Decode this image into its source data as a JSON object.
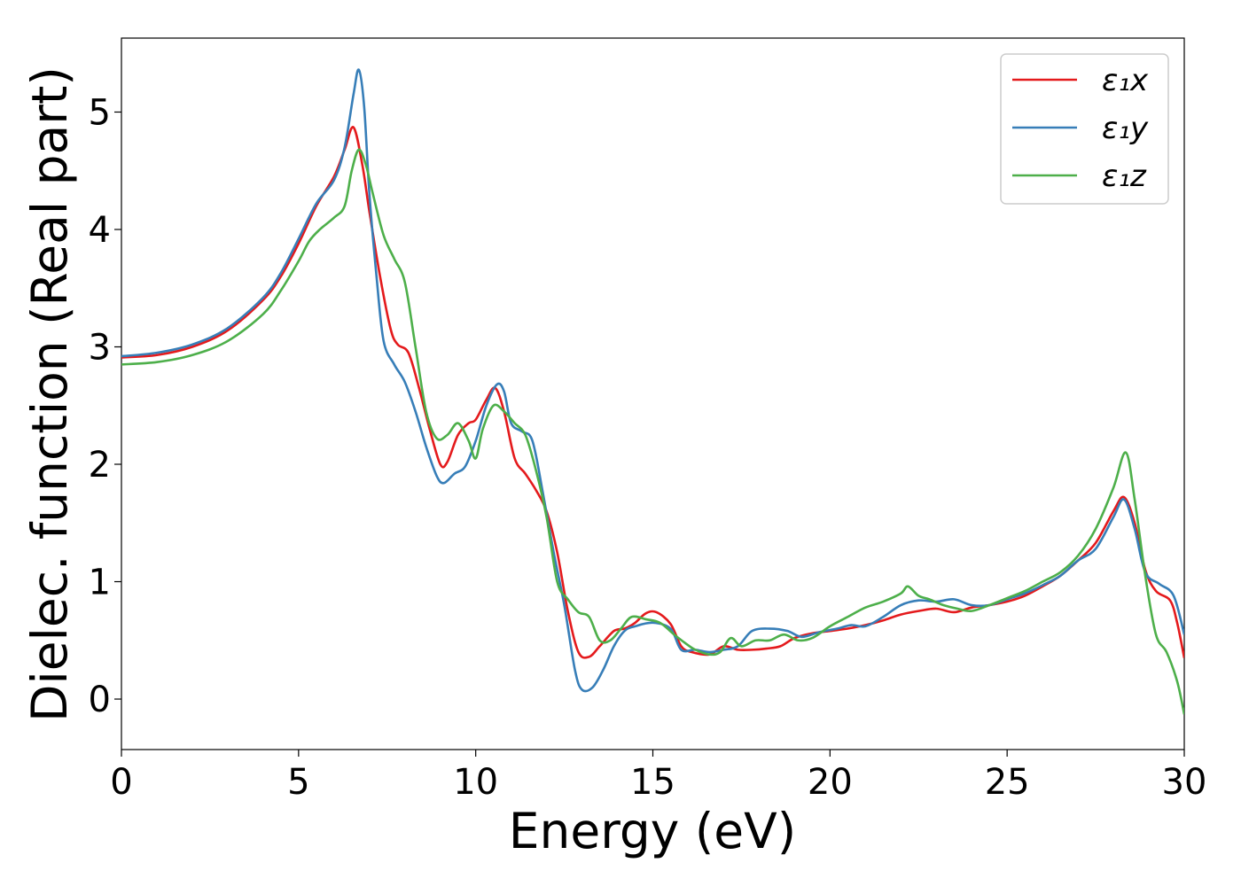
{
  "chart_data": {
    "type": "line",
    "xlabel": "Energy (eV)",
    "ylabel": "Dielec. function (Real part)",
    "xlim": [
      0,
      30
    ],
    "ylim": [
      -0.43,
      5.63
    ],
    "xticks": [
      0,
      5,
      10,
      15,
      20,
      25,
      30
    ],
    "yticks": [
      0,
      1,
      2,
      3,
      4,
      5
    ],
    "grid": false,
    "legend_position": "top-right",
    "series": [
      {
        "name": "ε₁x",
        "color": "#e41a1c",
        "points": [
          [
            0,
            2.91
          ],
          [
            1,
            2.93
          ],
          [
            2,
            3.0
          ],
          [
            3,
            3.14
          ],
          [
            4,
            3.4
          ],
          [
            4.5,
            3.6
          ],
          [
            5,
            3.88
          ],
          [
            5.5,
            4.2
          ],
          [
            6,
            4.45
          ],
          [
            6.3,
            4.68
          ],
          [
            6.55,
            4.87
          ],
          [
            6.8,
            4.55
          ],
          [
            7,
            4.15
          ],
          [
            7.3,
            3.6
          ],
          [
            7.6,
            3.15
          ],
          [
            7.8,
            3.02
          ],
          [
            8.1,
            2.95
          ],
          [
            8.4,
            2.65
          ],
          [
            8.7,
            2.3
          ],
          [
            9.0,
            2.0
          ],
          [
            9.2,
            2.02
          ],
          [
            9.5,
            2.25
          ],
          [
            9.8,
            2.35
          ],
          [
            10.0,
            2.38
          ],
          [
            10.3,
            2.55
          ],
          [
            10.55,
            2.65
          ],
          [
            10.8,
            2.45
          ],
          [
            11.1,
            2.05
          ],
          [
            11.4,
            1.92
          ],
          [
            11.7,
            1.78
          ],
          [
            12.0,
            1.6
          ],
          [
            12.3,
            1.25
          ],
          [
            12.6,
            0.75
          ],
          [
            12.9,
            0.4
          ],
          [
            13.2,
            0.36
          ],
          [
            13.5,
            0.45
          ],
          [
            13.9,
            0.58
          ],
          [
            14.2,
            0.6
          ],
          [
            14.5,
            0.65
          ],
          [
            14.8,
            0.73
          ],
          [
            15.1,
            0.74
          ],
          [
            15.5,
            0.64
          ],
          [
            15.8,
            0.45
          ],
          [
            16.1,
            0.4
          ],
          [
            16.6,
            0.38
          ],
          [
            17.0,
            0.45
          ],
          [
            17.4,
            0.42
          ],
          [
            17.8,
            0.42
          ],
          [
            18.2,
            0.43
          ],
          [
            18.6,
            0.45
          ],
          [
            19.0,
            0.52
          ],
          [
            19.5,
            0.56
          ],
          [
            20.0,
            0.58
          ],
          [
            20.5,
            0.6
          ],
          [
            21.0,
            0.63
          ],
          [
            21.5,
            0.67
          ],
          [
            22.0,
            0.72
          ],
          [
            22.5,
            0.75
          ],
          [
            23.0,
            0.77
          ],
          [
            23.5,
            0.74
          ],
          [
            24.0,
            0.78
          ],
          [
            24.5,
            0.8
          ],
          [
            25.0,
            0.83
          ],
          [
            25.5,
            0.88
          ],
          [
            26.0,
            0.96
          ],
          [
            26.5,
            1.05
          ],
          [
            27.0,
            1.18
          ],
          [
            27.5,
            1.33
          ],
          [
            28.0,
            1.6
          ],
          [
            28.3,
            1.72
          ],
          [
            28.6,
            1.5
          ],
          [
            28.9,
            1.1
          ],
          [
            29.2,
            0.92
          ],
          [
            29.6,
            0.84
          ],
          [
            29.8,
            0.65
          ],
          [
            30.0,
            0.35
          ]
        ]
      },
      {
        "name": "ε₁y",
        "color": "#377eb8",
        "points": [
          [
            0,
            2.92
          ],
          [
            1,
            2.95
          ],
          [
            2,
            3.02
          ],
          [
            3,
            3.16
          ],
          [
            4,
            3.42
          ],
          [
            4.5,
            3.63
          ],
          [
            5,
            3.92
          ],
          [
            5.5,
            4.22
          ],
          [
            6,
            4.42
          ],
          [
            6.3,
            4.7
          ],
          [
            6.55,
            5.15
          ],
          [
            6.7,
            5.36
          ],
          [
            6.85,
            5.05
          ],
          [
            7.0,
            4.3
          ],
          [
            7.2,
            3.6
          ],
          [
            7.4,
            3.05
          ],
          [
            7.7,
            2.85
          ],
          [
            8.0,
            2.7
          ],
          [
            8.3,
            2.45
          ],
          [
            8.6,
            2.15
          ],
          [
            8.9,
            1.9
          ],
          [
            9.1,
            1.84
          ],
          [
            9.4,
            1.92
          ],
          [
            9.7,
            1.98
          ],
          [
            10.0,
            2.2
          ],
          [
            10.3,
            2.5
          ],
          [
            10.6,
            2.68
          ],
          [
            10.8,
            2.62
          ],
          [
            11.0,
            2.35
          ],
          [
            11.3,
            2.28
          ],
          [
            11.6,
            2.2
          ],
          [
            11.9,
            1.75
          ],
          [
            12.2,
            1.25
          ],
          [
            12.5,
            0.8
          ],
          [
            12.8,
            0.25
          ],
          [
            13.0,
            0.08
          ],
          [
            13.3,
            0.1
          ],
          [
            13.6,
            0.25
          ],
          [
            13.9,
            0.45
          ],
          [
            14.2,
            0.58
          ],
          [
            14.5,
            0.62
          ],
          [
            15.0,
            0.65
          ],
          [
            15.5,
            0.6
          ],
          [
            15.8,
            0.42
          ],
          [
            16.2,
            0.42
          ],
          [
            16.6,
            0.4
          ],
          [
            17.0,
            0.42
          ],
          [
            17.4,
            0.45
          ],
          [
            17.8,
            0.58
          ],
          [
            18.3,
            0.6
          ],
          [
            18.8,
            0.58
          ],
          [
            19.2,
            0.53
          ],
          [
            19.7,
            0.57
          ],
          [
            20.2,
            0.6
          ],
          [
            20.6,
            0.63
          ],
          [
            21.0,
            0.62
          ],
          [
            21.5,
            0.7
          ],
          [
            22.0,
            0.8
          ],
          [
            22.5,
            0.84
          ],
          [
            23.0,
            0.83
          ],
          [
            23.5,
            0.85
          ],
          [
            24.0,
            0.8
          ],
          [
            24.5,
            0.8
          ],
          [
            25.0,
            0.85
          ],
          [
            25.5,
            0.9
          ],
          [
            26.0,
            0.97
          ],
          [
            26.5,
            1.05
          ],
          [
            27.0,
            1.18
          ],
          [
            27.5,
            1.28
          ],
          [
            28.0,
            1.55
          ],
          [
            28.3,
            1.7
          ],
          [
            28.6,
            1.45
          ],
          [
            28.9,
            1.08
          ],
          [
            29.3,
            0.98
          ],
          [
            29.7,
            0.88
          ],
          [
            30.0,
            0.55
          ]
        ]
      },
      {
        "name": "ε₁z",
        "color": "#4daf4a",
        "points": [
          [
            0,
            2.85
          ],
          [
            1,
            2.87
          ],
          [
            2,
            2.93
          ],
          [
            3,
            3.05
          ],
          [
            4,
            3.28
          ],
          [
            4.5,
            3.48
          ],
          [
            5,
            3.73
          ],
          [
            5.3,
            3.9
          ],
          [
            5.6,
            4.0
          ],
          [
            6.0,
            4.1
          ],
          [
            6.3,
            4.2
          ],
          [
            6.5,
            4.5
          ],
          [
            6.7,
            4.68
          ],
          [
            6.9,
            4.55
          ],
          [
            7.1,
            4.3
          ],
          [
            7.4,
            3.95
          ],
          [
            7.7,
            3.75
          ],
          [
            8.0,
            3.55
          ],
          [
            8.3,
            3.0
          ],
          [
            8.6,
            2.45
          ],
          [
            8.9,
            2.22
          ],
          [
            9.2,
            2.25
          ],
          [
            9.5,
            2.35
          ],
          [
            9.8,
            2.2
          ],
          [
            10.0,
            2.05
          ],
          [
            10.2,
            2.3
          ],
          [
            10.5,
            2.5
          ],
          [
            10.8,
            2.45
          ],
          [
            11.1,
            2.35
          ],
          [
            11.4,
            2.25
          ],
          [
            11.7,
            1.95
          ],
          [
            12.0,
            1.55
          ],
          [
            12.3,
            1.0
          ],
          [
            12.6,
            0.85
          ],
          [
            12.9,
            0.74
          ],
          [
            13.2,
            0.7
          ],
          [
            13.5,
            0.5
          ],
          [
            13.8,
            0.5
          ],
          [
            14.1,
            0.6
          ],
          [
            14.4,
            0.7
          ],
          [
            14.8,
            0.68
          ],
          [
            15.2,
            0.65
          ],
          [
            15.6,
            0.55
          ],
          [
            15.9,
            0.48
          ],
          [
            16.2,
            0.42
          ],
          [
            16.6,
            0.38
          ],
          [
            16.9,
            0.4
          ],
          [
            17.2,
            0.52
          ],
          [
            17.5,
            0.45
          ],
          [
            17.9,
            0.5
          ],
          [
            18.3,
            0.5
          ],
          [
            18.7,
            0.55
          ],
          [
            19.1,
            0.5
          ],
          [
            19.5,
            0.52
          ],
          [
            20.0,
            0.62
          ],
          [
            20.5,
            0.7
          ],
          [
            21.0,
            0.78
          ],
          [
            21.5,
            0.83
          ],
          [
            22.0,
            0.9
          ],
          [
            22.2,
            0.96
          ],
          [
            22.5,
            0.88
          ],
          [
            22.8,
            0.85
          ],
          [
            23.2,
            0.8
          ],
          [
            23.6,
            0.77
          ],
          [
            24.0,
            0.75
          ],
          [
            24.5,
            0.8
          ],
          [
            25.0,
            0.86
          ],
          [
            25.5,
            0.92
          ],
          [
            26.0,
            1.0
          ],
          [
            26.5,
            1.08
          ],
          [
            27.0,
            1.22
          ],
          [
            27.5,
            1.45
          ],
          [
            28.0,
            1.8
          ],
          [
            28.35,
            2.1
          ],
          [
            28.6,
            1.7
          ],
          [
            28.9,
            1.05
          ],
          [
            29.2,
            0.55
          ],
          [
            29.5,
            0.4
          ],
          [
            29.8,
            0.15
          ],
          [
            30.0,
            -0.13
          ]
        ]
      }
    ]
  }
}
